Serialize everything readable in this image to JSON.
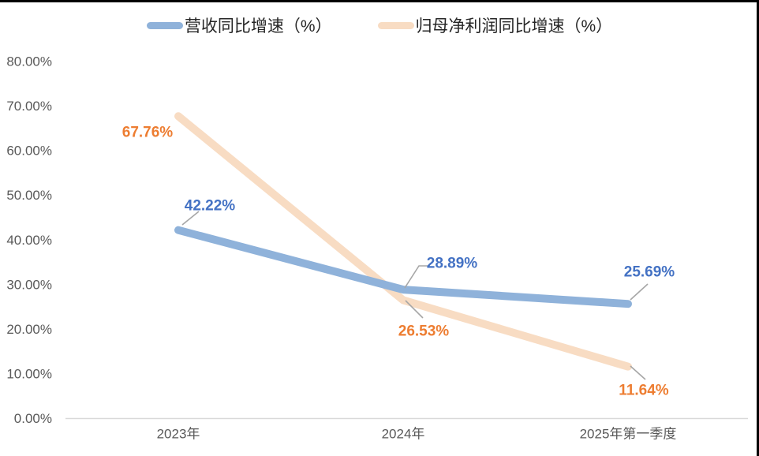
{
  "chart_data": {
    "type": "line",
    "title": "",
    "categories": [
      "2023年",
      "2024年",
      "2025年第一季度"
    ],
    "series": [
      {
        "name": "营收同比增速（%）",
        "values": [
          42.22,
          28.89,
          25.69
        ],
        "point_labels": [
          "42.22%",
          "28.89%",
          "25.69%"
        ],
        "line_color": "#8FB2DA",
        "label_color": "#4472C4"
      },
      {
        "name": "归母净利润同比增速（%）",
        "values": [
          67.76,
          26.53,
          11.64
        ],
        "point_labels": [
          "67.76%",
          "26.53%",
          "11.64%"
        ],
        "line_color": "#F8DCC3",
        "label_color": "#ED7D31"
      }
    ],
    "x_axis": {
      "tick_labels": [
        "2023年",
        "2024年",
        "2025年第一季度"
      ]
    },
    "y_axis": {
      "min": 0,
      "max": 80,
      "step": 10,
      "tick_labels": [
        "0.00%",
        "10.00%",
        "20.00%",
        "30.00%",
        "40.00%",
        "50.00%",
        "60.00%",
        "70.00%",
        "80.00%"
      ]
    },
    "legend_position": "top",
    "grid": false,
    "styles": {
      "background": "#FFFFFF",
      "border_color": "#000000",
      "axis_text_color": "#595959",
      "axis_line_color": "#D9D9D9",
      "leader_line_color": "#A6A6A6",
      "legend_text_color": "#262626"
    }
  }
}
